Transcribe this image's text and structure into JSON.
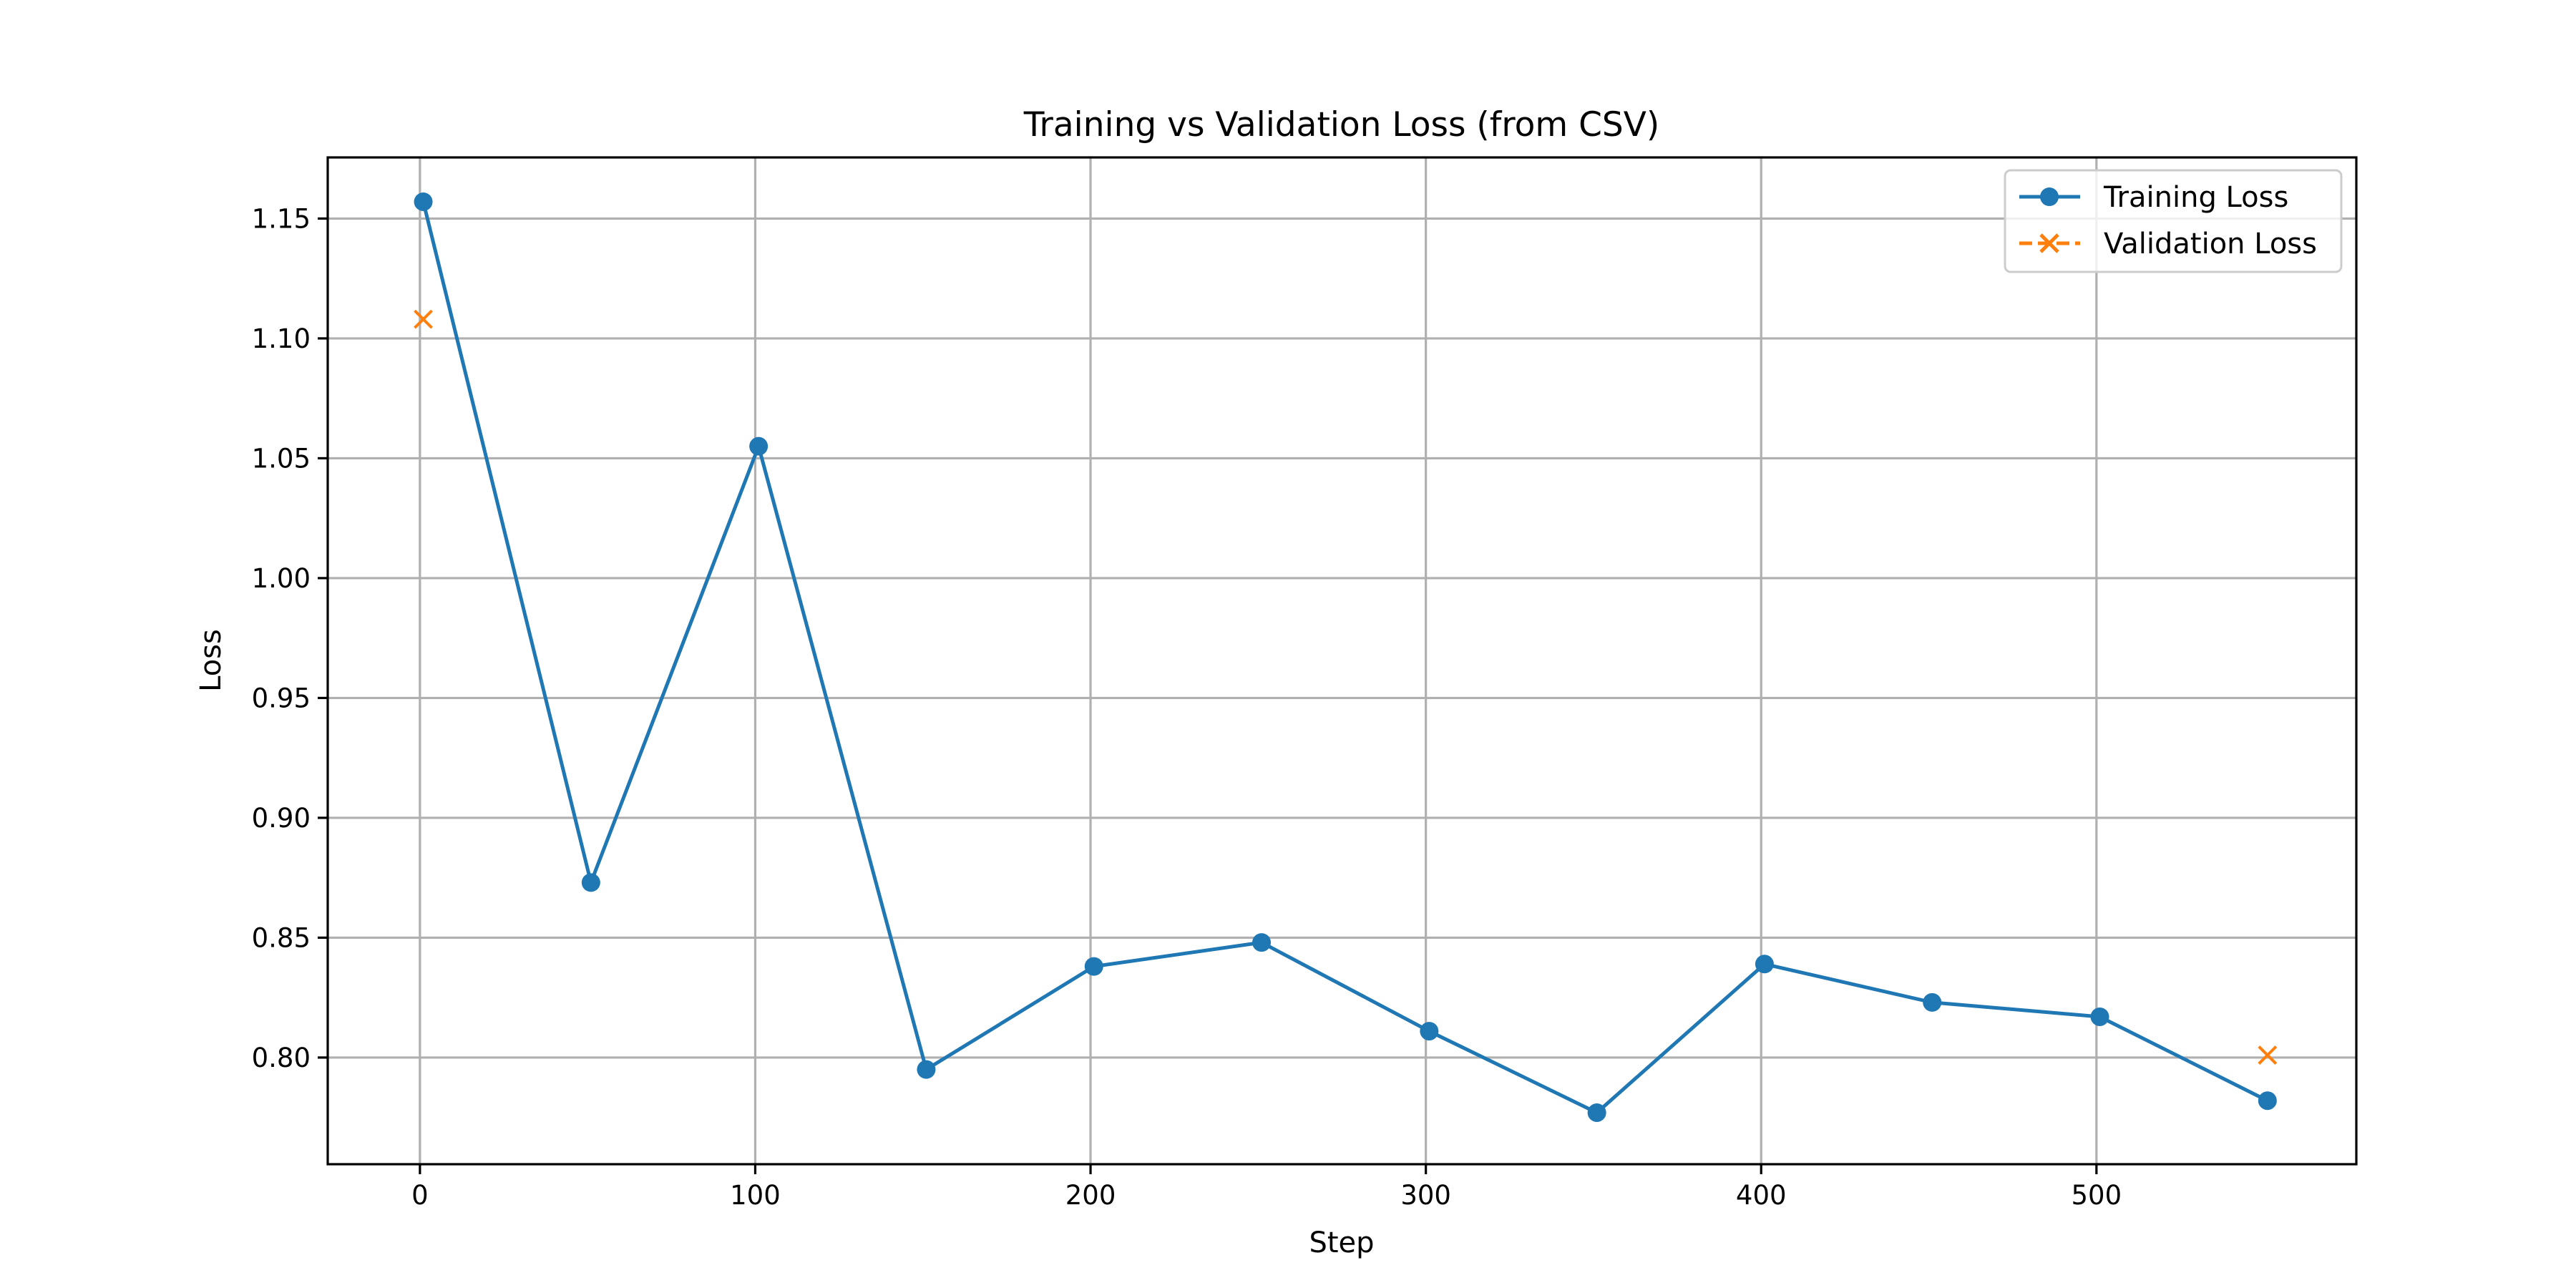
{
  "chart_data": {
    "type": "line",
    "title": "Training vs Validation Loss (from CSV)",
    "xlabel": "Step",
    "ylabel": "Loss",
    "xlim": [
      -27.5,
      577.5
    ],
    "ylim": [
      0.7555,
      1.1755
    ],
    "xticks": [
      0,
      100,
      200,
      300,
      400,
      500
    ],
    "xtick_labels": [
      "0",
      "100",
      "200",
      "300",
      "400",
      "500"
    ],
    "yticks": [
      0.8,
      0.85,
      0.9,
      0.95,
      1.0,
      1.05,
      1.1,
      1.15
    ],
    "ytick_labels": [
      "0.80",
      "0.85",
      "0.90",
      "0.95",
      "1.00",
      "1.05",
      "1.10",
      "1.15"
    ],
    "grid": true,
    "legend_position": "top-right",
    "series": [
      {
        "name": "Training Loss",
        "color": "#1f77b4",
        "marker": "circle",
        "linestyle": "solid",
        "x": [
          1,
          51,
          101,
          151,
          201,
          251,
          301,
          351,
          401,
          451,
          501,
          551
        ],
        "y": [
          1.157,
          0.873,
          1.055,
          0.795,
          0.838,
          0.848,
          0.811,
          0.777,
          0.839,
          0.823,
          0.817,
          0.782
        ]
      },
      {
        "name": "Validation Loss",
        "color": "#ff7f0e",
        "marker": "x",
        "linestyle": "dashed",
        "x": [
          1,
          551
        ],
        "y": [
          1.108,
          0.801
        ]
      }
    ]
  }
}
